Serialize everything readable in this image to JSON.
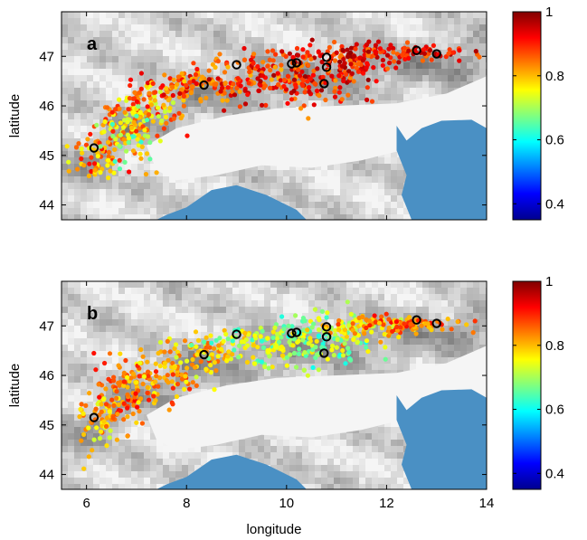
{
  "chart_data": [
    {
      "type": "scatter",
      "panel_label": "a",
      "xlabel": "",
      "ylabel": "latitude",
      "xlim": [
        5.5,
        14
      ],
      "ylim": [
        43.7,
        47.9
      ],
      "x_ticks": [
        "",
        "",
        "",
        "",
        ""
      ],
      "y_ticks": [
        "44",
        "45",
        "46",
        "47"
      ],
      "y_tick_values": [
        44,
        45,
        46,
        47
      ],
      "colorbar": {
        "min": 0.35,
        "max": 1.0,
        "ticks": [
          "0.4",
          "0.6",
          "0.8",
          "1"
        ],
        "tick_values": [
          0.4,
          0.6,
          0.8,
          1.0
        ],
        "colormap": "jet"
      },
      "clusters": [
        {
          "lon": 6.2,
          "lat": 45.0,
          "sx": 0.25,
          "sy": 0.25,
          "n": 60,
          "cmin": 0.74,
          "cmax": 0.92
        },
        {
          "lon": 6.7,
          "lat": 45.6,
          "sx": 0.3,
          "sy": 0.3,
          "n": 70,
          "cmin": 0.72,
          "cmax": 0.9
        },
        {
          "lon": 7.2,
          "lat": 45.9,
          "sx": 0.35,
          "sy": 0.25,
          "n": 80,
          "cmin": 0.7,
          "cmax": 0.92
        },
        {
          "lon": 8.0,
          "lat": 46.35,
          "sx": 0.5,
          "sy": 0.18,
          "n": 90,
          "cmin": 0.78,
          "cmax": 0.95
        },
        {
          "lon": 9.2,
          "lat": 46.55,
          "sx": 0.6,
          "sy": 0.22,
          "n": 110,
          "cmin": 0.8,
          "cmax": 0.97
        },
        {
          "lon": 10.5,
          "lat": 46.6,
          "sx": 0.6,
          "sy": 0.3,
          "n": 140,
          "cmin": 0.82,
          "cmax": 0.98
        },
        {
          "lon": 11.3,
          "lat": 46.95,
          "sx": 0.45,
          "sy": 0.18,
          "n": 90,
          "cmin": 0.84,
          "cmax": 0.99
        },
        {
          "lon": 12.5,
          "lat": 47.05,
          "sx": 0.6,
          "sy": 0.08,
          "n": 80,
          "cmin": 0.84,
          "cmax": 0.98
        },
        {
          "lon": 6.9,
          "lat": 45.3,
          "sx": 0.3,
          "sy": 0.35,
          "n": 40,
          "cmin": 0.62,
          "cmax": 0.82
        }
      ],
      "stations": [
        {
          "lon": 6.15,
          "lat": 45.15
        },
        {
          "lon": 8.35,
          "lat": 46.42
        },
        {
          "lon": 9.0,
          "lat": 46.83
        },
        {
          "lon": 10.1,
          "lat": 46.85
        },
        {
          "lon": 10.2,
          "lat": 46.87
        },
        {
          "lon": 10.75,
          "lat": 46.45
        },
        {
          "lon": 10.8,
          "lat": 46.78
        },
        {
          "lon": 10.8,
          "lat": 46.98
        },
        {
          "lon": 12.6,
          "lat": 47.12
        },
        {
          "lon": 13.0,
          "lat": 47.05
        }
      ]
    },
    {
      "type": "scatter",
      "panel_label": "b",
      "xlabel": "longitude",
      "ylabel": "latitude",
      "xlim": [
        5.5,
        14
      ],
      "ylim": [
        43.7,
        47.9
      ],
      "x_ticks": [
        "6",
        "8",
        "10",
        "12",
        "14"
      ],
      "x_tick_values": [
        6,
        8,
        10,
        12,
        14
      ],
      "y_ticks": [
        "44",
        "45",
        "46",
        "47"
      ],
      "y_tick_values": [
        44,
        45,
        46,
        47
      ],
      "colorbar": {
        "min": 0.35,
        "max": 1.0,
        "ticks": [
          "0.4",
          "0.6",
          "0.8",
          "1"
        ],
        "tick_values": [
          0.4,
          0.6,
          0.8,
          1.0
        ],
        "colormap": "jet"
      },
      "clusters": [
        {
          "lon": 6.2,
          "lat": 45.0,
          "sx": 0.25,
          "sy": 0.3,
          "n": 60,
          "cmin": 0.72,
          "cmax": 0.86
        },
        {
          "lon": 6.8,
          "lat": 45.6,
          "sx": 0.35,
          "sy": 0.35,
          "n": 90,
          "cmin": 0.78,
          "cmax": 0.92
        },
        {
          "lon": 7.5,
          "lat": 46.0,
          "sx": 0.45,
          "sy": 0.25,
          "n": 90,
          "cmin": 0.74,
          "cmax": 0.9
        },
        {
          "lon": 8.5,
          "lat": 46.45,
          "sx": 0.5,
          "sy": 0.2,
          "n": 70,
          "cmin": 0.72,
          "cmax": 0.86
        },
        {
          "lon": 9.6,
          "lat": 46.6,
          "sx": 0.6,
          "sy": 0.25,
          "n": 110,
          "cmin": 0.62,
          "cmax": 0.8
        },
        {
          "lon": 10.7,
          "lat": 46.75,
          "sx": 0.55,
          "sy": 0.3,
          "n": 120,
          "cmin": 0.6,
          "cmax": 0.78
        },
        {
          "lon": 11.4,
          "lat": 46.95,
          "sx": 0.45,
          "sy": 0.15,
          "n": 80,
          "cmin": 0.7,
          "cmax": 0.86
        },
        {
          "lon": 12.5,
          "lat": 47.05,
          "sx": 0.6,
          "sy": 0.08,
          "n": 80,
          "cmin": 0.78,
          "cmax": 0.92
        }
      ],
      "stations": [
        {
          "lon": 6.15,
          "lat": 45.15
        },
        {
          "lon": 8.35,
          "lat": 46.42
        },
        {
          "lon": 9.0,
          "lat": 46.83
        },
        {
          "lon": 10.1,
          "lat": 46.85
        },
        {
          "lon": 10.2,
          "lat": 46.87
        },
        {
          "lon": 10.75,
          "lat": 46.45
        },
        {
          "lon": 10.8,
          "lat": 46.78
        },
        {
          "lon": 10.8,
          "lat": 46.98
        },
        {
          "lon": 12.6,
          "lat": 47.12
        },
        {
          "lon": 13.0,
          "lat": 47.05
        }
      ]
    }
  ],
  "colors": {
    "sea": "#4a90c4",
    "plain": "#ececec",
    "station_ring": "#000000"
  }
}
